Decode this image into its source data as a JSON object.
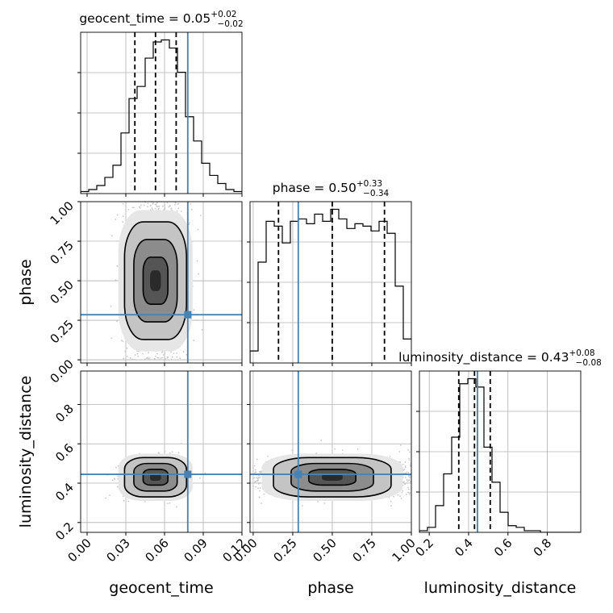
{
  "chart_data": {
    "type": "corner",
    "parameters": [
      {
        "key": "geocent_time",
        "label": "geocent_time",
        "range": [
          -0.005,
          0.12
        ],
        "ticks": [
          0.0,
          0.03,
          0.06,
          0.09,
          0.12
        ],
        "tick_labels": [
          "0.00",
          "0.03",
          "0.06",
          "0.09",
          "0.12"
        ],
        "median": 0.053,
        "q_low": 0.037,
        "q_high": 0.069,
        "truth": 0.078,
        "title": {
          "base": "geocent_time = 0.05",
          "sup": "+0.02",
          "sub": "−0.02"
        }
      },
      {
        "key": "phase",
        "label": "phase",
        "range": [
          -0.02,
          1.0
        ],
        "ticks": [
          0.0,
          0.25,
          0.5,
          0.75,
          1.0
        ],
        "tick_labels": [
          "0.00",
          "0.25",
          "0.50",
          "0.75",
          "1.00"
        ],
        "median": 0.5,
        "q_low": 0.16,
        "q_high": 0.83,
        "truth": 0.285,
        "title": {
          "base": "phase = 0.50",
          "sup": "+0.33",
          "sub": "−0.34"
        }
      },
      {
        "key": "luminosity_distance",
        "label": "luminosity_distance",
        "range": [
          0.15,
          0.97
        ],
        "ticks": [
          0.2,
          0.4,
          0.6,
          0.8
        ],
        "tick_labels": [
          "0.2",
          "0.4",
          "0.6",
          "0.8"
        ],
        "median": 0.43,
        "q_low": 0.35,
        "q_high": 0.51,
        "truth": 0.445,
        "title": {
          "base": "luminosity_distance = 0.43",
          "sup": "+0.08",
          "sub": "−0.08"
        }
      }
    ],
    "row_axis_ticks": {
      "phase": {
        "ticks": [
          0.0,
          0.25,
          0.5,
          0.75,
          1.0
        ],
        "tick_labels": [
          "0.00",
          "0.25",
          "0.50",
          "0.75",
          "1.00"
        ]
      },
      "luminosity_distance": {
        "ticks": [
          0.2,
          0.4,
          0.6,
          0.8
        ],
        "tick_labels": [
          "0.2",
          "0.4",
          "0.6",
          "0.8"
        ]
      }
    },
    "histograms": {
      "geocent_time": {
        "x_start": -0.005,
        "bin_width": 0.00625,
        "counts": [
          1,
          2,
          4,
          8,
          14,
          30,
          47,
          53,
          67,
          75,
          76,
          72,
          60,
          38,
          26,
          15,
          9,
          5,
          2,
          1
        ]
      },
      "phase": {
        "x_start": -0.02,
        "bin_width": 0.051,
        "counts": [
          5,
          42,
          59,
          57,
          50,
          59,
          60,
          58,
          62,
          59,
          64,
          60,
          56,
          58,
          57,
          55,
          59,
          54,
          32,
          10
        ]
      },
      "luminosity_distance": {
        "x_start": 0.15,
        "bin_width": 0.041,
        "counts": [
          1,
          3,
          16,
          35,
          57,
          89,
          92,
          87,
          51,
          30,
          12,
          4,
          3,
          1,
          1,
          0,
          0,
          0,
          0,
          0
        ]
      }
    },
    "colors": {
      "truth": "#4682b4",
      "quantile": "#000000",
      "hist": "#000000",
      "grid": "#b0b0b0",
      "scatter": "#c8c8c8"
    },
    "grid": true,
    "truth_marker": "square"
  }
}
